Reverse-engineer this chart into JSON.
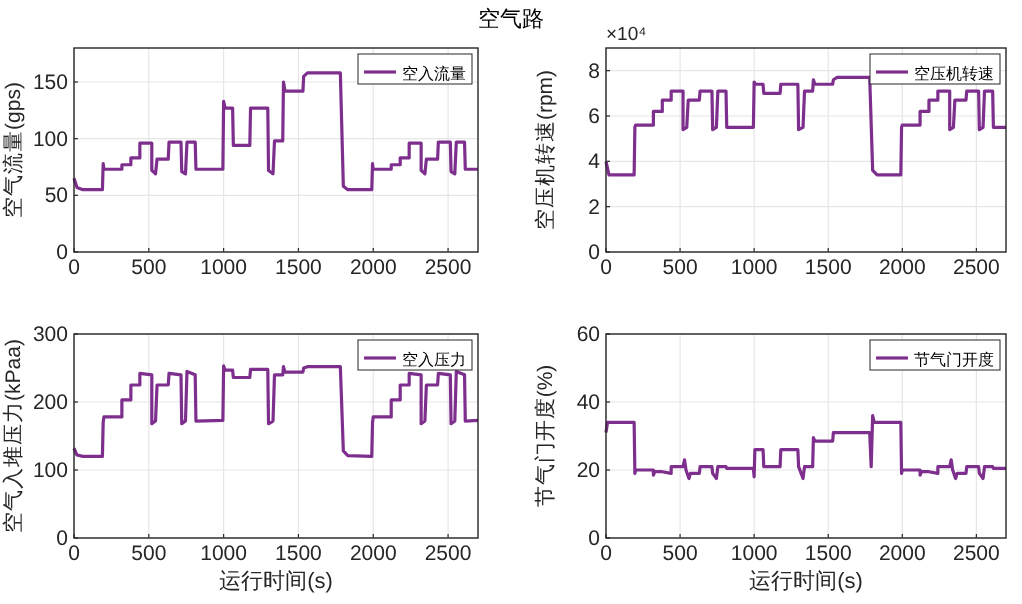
{
  "chart_data": [
    {
      "type": "line",
      "title": "空气路",
      "ylabel": "空气流量(gps)",
      "xlim": [
        0,
        2700
      ],
      "xticks": [
        0,
        500,
        1000,
        1500,
        2000,
        2500
      ],
      "ylim": [
        0,
        180
      ],
      "yticks": [
        0,
        50,
        100,
        150
      ],
      "grid": true,
      "legend": "top right",
      "x": [
        0,
        20,
        60,
        190,
        195,
        200,
        320,
        320,
        380,
        380,
        440,
        440,
        520,
        520,
        545,
        555,
        630,
        635,
        715,
        720,
        745,
        755,
        810,
        815,
        995,
        1000,
        1010,
        1060,
        1065,
        1175,
        1180,
        1295,
        1300,
        1330,
        1340,
        1395,
        1400,
        1410,
        1530,
        1535,
        1560,
        1780,
        1800,
        1830,
        1990,
        1995,
        2000,
        2120,
        2120,
        2180,
        2180,
        2240,
        2240,
        2320,
        2320,
        2345,
        2355,
        2430,
        2435,
        2515,
        2520,
        2545,
        2555,
        2610,
        2615,
        2700
      ],
      "series": [
        {
          "name": "空入流量",
          "color": "#7e2f8e",
          "values": [
            65,
            57,
            55,
            55,
            78,
            73,
            73,
            77,
            77,
            83,
            83,
            96,
            96,
            72,
            69,
            82,
            82,
            97,
            97,
            71,
            69,
            97,
            97,
            73,
            73,
            133,
            127,
            127,
            94,
            94,
            127,
            127,
            72,
            69,
            98,
            98,
            150,
            142,
            142,
            155,
            158,
            158,
            58,
            55,
            55,
            78,
            73,
            73,
            77,
            77,
            83,
            83,
            96,
            96,
            72,
            69,
            82,
            82,
            97,
            97,
            71,
            69,
            97,
            97,
            73,
            73
          ]
        }
      ]
    },
    {
      "type": "line",
      "ylabel": "空压机转速(rpm)",
      "annotations": [
        "×10⁴"
      ],
      "xlim": [
        0,
        2700
      ],
      "xticks": [
        0,
        500,
        1000,
        1500,
        2000,
        2500
      ],
      "ylim": [
        0,
        9
      ],
      "yticks": [
        0,
        2,
        4,
        6,
        8
      ],
      "grid": true,
      "legend": "top right",
      "x": [
        0,
        20,
        60,
        190,
        195,
        200,
        320,
        320,
        380,
        380,
        440,
        440,
        520,
        520,
        545,
        555,
        630,
        635,
        715,
        720,
        745,
        755,
        810,
        815,
        995,
        1000,
        1010,
        1060,
        1065,
        1175,
        1180,
        1295,
        1300,
        1330,
        1340,
        1395,
        1400,
        1410,
        1530,
        1535,
        1560,
        1780,
        1800,
        1830,
        1990,
        1995,
        2000,
        2120,
        2120,
        2180,
        2180,
        2240,
        2240,
        2320,
        2320,
        2345,
        2355,
        2430,
        2435,
        2515,
        2520,
        2545,
        2555,
        2610,
        2615,
        2700
      ],
      "series": [
        {
          "name": "空压机转速",
          "color": "#7e2f8e",
          "values": [
            4,
            3.4,
            3.4,
            3.4,
            5.5,
            5.6,
            5.6,
            6.2,
            6.2,
            6.7,
            6.7,
            7.1,
            7.1,
            5.4,
            5.5,
            6.7,
            6.7,
            7.1,
            7.1,
            5.4,
            5.5,
            7.1,
            7.1,
            5.5,
            5.5,
            7.5,
            7.4,
            7.4,
            7,
            7,
            7.4,
            7.4,
            5.4,
            5.5,
            7.1,
            7.1,
            7.6,
            7.4,
            7.4,
            7.6,
            7.7,
            7.7,
            3.6,
            3.4,
            3.4,
            5.5,
            5.6,
            5.6,
            6.2,
            6.2,
            6.7,
            6.7,
            7.1,
            7.1,
            5.4,
            5.5,
            6.7,
            6.7,
            7.1,
            7.1,
            5.4,
            5.5,
            7.1,
            7.1,
            5.5,
            5.5
          ]
        }
      ]
    },
    {
      "type": "line",
      "xlabel": "运行时间(s)",
      "ylabel": "空气入堆压力(kPaa)",
      "xlim": [
        0,
        2700
      ],
      "xticks": [
        0,
        500,
        1000,
        1500,
        2000,
        2500
      ],
      "ylim": [
        0,
        300
      ],
      "yticks": [
        0,
        100,
        200,
        300
      ],
      "grid": true,
      "legend": "top right",
      "x": [
        0,
        20,
        60,
        190,
        195,
        200,
        320,
        320,
        380,
        380,
        440,
        440,
        520,
        520,
        545,
        555,
        630,
        635,
        715,
        720,
        745,
        755,
        810,
        815,
        995,
        1000,
        1010,
        1060,
        1065,
        1175,
        1180,
        1295,
        1300,
        1330,
        1340,
        1395,
        1400,
        1410,
        1530,
        1535,
        1560,
        1780,
        1800,
        1830,
        1990,
        1995,
        2000,
        2120,
        2120,
        2180,
        2180,
        2240,
        2240,
        2320,
        2320,
        2345,
        2355,
        2430,
        2435,
        2515,
        2520,
        2545,
        2555,
        2610,
        2615,
        2700
      ],
      "series": [
        {
          "name": "空入压力",
          "color": "#7e2f8e",
          "values": [
            132,
            122,
            120,
            120,
            170,
            178,
            178,
            203,
            203,
            225,
            225,
            242,
            240,
            168,
            172,
            225,
            225,
            242,
            240,
            168,
            172,
            245,
            240,
            172,
            173,
            253,
            247,
            247,
            236,
            236,
            248,
            248,
            168,
            172,
            240,
            240,
            252,
            244,
            244,
            250,
            252,
            252,
            128,
            121,
            120,
            170,
            178,
            178,
            203,
            203,
            225,
            225,
            242,
            240,
            168,
            172,
            225,
            225,
            242,
            240,
            168,
            172,
            245,
            240,
            172,
            173
          ]
        }
      ]
    },
    {
      "type": "line",
      "xlabel": "运行时间(s)",
      "ylabel": "节气门开度(%)",
      "xlim": [
        0,
        2700
      ],
      "xticks": [
        0,
        500,
        1000,
        1500,
        2000,
        2500
      ],
      "ylim": [
        0,
        60
      ],
      "yticks": [
        0,
        20,
        40,
        60
      ],
      "grid": true,
      "legend": "top right",
      "x": [
        0,
        10,
        190,
        195,
        200,
        320,
        320,
        330,
        380,
        440,
        440,
        520,
        530,
        540,
        560,
        570,
        630,
        635,
        715,
        720,
        745,
        755,
        810,
        815,
        995,
        1000,
        1005,
        1060,
        1065,
        1175,
        1180,
        1295,
        1300,
        1330,
        1340,
        1395,
        1400,
        1410,
        1530,
        1535,
        1560,
        1780,
        1790,
        1800,
        1810,
        1990,
        1995,
        2000,
        2120,
        2120,
        2130,
        2180,
        2240,
        2240,
        2320,
        2330,
        2340,
        2360,
        2370,
        2430,
        2435,
        2515,
        2520,
        2545,
        2555,
        2610,
        2615,
        2700
      ],
      "series": [
        {
          "name": "节气门开度",
          "color": "#7e2f8e",
          "values": [
            31,
            34,
            34,
            19,
            20,
            20,
            18.5,
            19.5,
            19.5,
            19,
            21,
            21,
            23,
            20,
            17.5,
            19,
            19,
            21,
            21,
            19,
            17.5,
            21,
            21,
            20.5,
            20.5,
            18,
            26,
            26,
            21,
            21,
            26,
            26,
            21,
            17.5,
            21,
            21,
            29.5,
            28.5,
            28.5,
            31,
            31,
            31,
            21,
            36,
            34,
            34,
            19,
            20,
            20,
            18.5,
            19.5,
            19.5,
            19,
            21,
            21,
            23,
            20,
            17.5,
            19,
            19,
            21,
            21,
            19,
            17.5,
            21,
            21,
            20.5,
            20.5
          ]
        }
      ]
    }
  ]
}
